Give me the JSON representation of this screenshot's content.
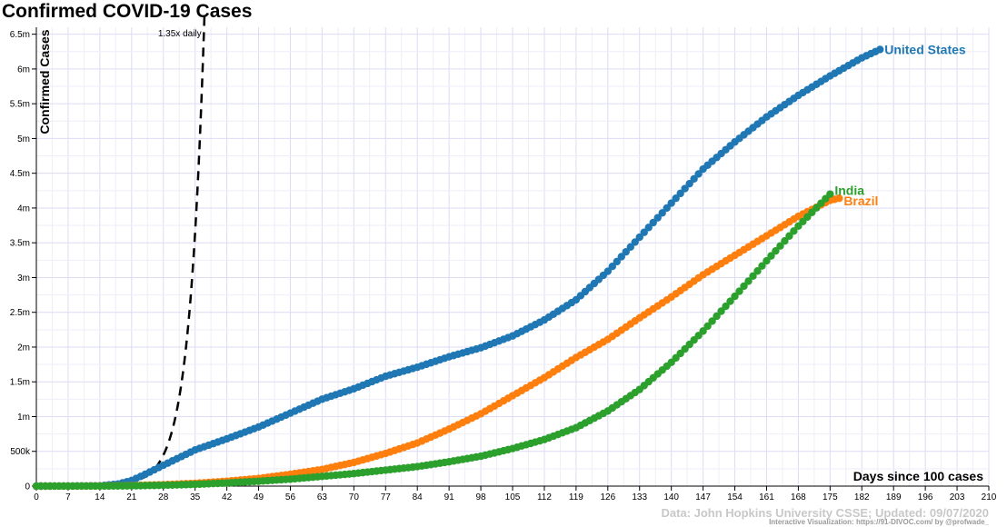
{
  "chart_data": {
    "type": "line",
    "title": "Confirmed COVID-19 Cases",
    "ylabel": "Confirmed Cases",
    "xlabel": "Days since 100 cases",
    "xlim": [
      0,
      210
    ],
    "ylim": [
      0,
      6600000
    ],
    "x_ticks": [
      0,
      7,
      14,
      21,
      28,
      35,
      42,
      49,
      56,
      63,
      70,
      77,
      84,
      91,
      98,
      105,
      112,
      119,
      126,
      133,
      140,
      147,
      154,
      161,
      168,
      175,
      182,
      189,
      196,
      203,
      210
    ],
    "y_ticks": [
      {
        "value": 0,
        "label": "0"
      },
      {
        "value": 500000,
        "label": "500k"
      },
      {
        "value": 1000000,
        "label": "1m"
      },
      {
        "value": 1500000,
        "label": "1.5m"
      },
      {
        "value": 2000000,
        "label": "2m"
      },
      {
        "value": 2500000,
        "label": "2.5m"
      },
      {
        "value": 3000000,
        "label": "3m"
      },
      {
        "value": 3500000,
        "label": "3.5m"
      },
      {
        "value": 4000000,
        "label": "4m"
      },
      {
        "value": 4500000,
        "label": "4.5m"
      },
      {
        "value": 5000000,
        "label": "5m"
      },
      {
        "value": 5500000,
        "label": "5.5m"
      },
      {
        "value": 6000000,
        "label": "6m"
      },
      {
        "value": 6500000,
        "label": "6.5m"
      }
    ],
    "grid": true,
    "reference_line": {
      "label": "1.35x daily",
      "growth_rate": 1.35,
      "start_value": 100,
      "style": "dashed",
      "color": "#000000"
    },
    "series": [
      {
        "name": "United States",
        "color": "#1f77b4",
        "x": [
          0,
          7,
          14,
          18,
          21,
          24,
          28,
          35,
          42,
          49,
          56,
          63,
          70,
          77,
          84,
          91,
          98,
          105,
          112,
          119,
          126,
          133,
          140,
          147,
          154,
          161,
          168,
          175,
          182,
          186
        ],
        "y": [
          100,
          800,
          4000,
          30000,
          80000,
          170000,
          300000,
          520000,
          680000,
          850000,
          1050000,
          1250000,
          1400000,
          1580000,
          1710000,
          1860000,
          1990000,
          2160000,
          2390000,
          2680000,
          3090000,
          3580000,
          4070000,
          4560000,
          4950000,
          5310000,
          5620000,
          5900000,
          6160000,
          6280000
        ]
      },
      {
        "name": "Brazil",
        "color": "#ff7f0e",
        "x": [
          0,
          7,
          14,
          21,
          28,
          35,
          42,
          49,
          56,
          63,
          70,
          77,
          84,
          91,
          98,
          105,
          112,
          119,
          126,
          133,
          140,
          147,
          154,
          161,
          168,
          175,
          177
        ],
        "y": [
          100,
          500,
          2000,
          8000,
          20000,
          40000,
          70000,
          110000,
          170000,
          240000,
          340000,
          470000,
          620000,
          820000,
          1040000,
          1300000,
          1560000,
          1850000,
          2110000,
          2420000,
          2720000,
          3040000,
          3320000,
          3600000,
          3880000,
          4110000,
          4140000
        ]
      },
      {
        "name": "India",
        "color": "#2ca02c",
        "x": [
          0,
          7,
          14,
          21,
          28,
          35,
          42,
          49,
          56,
          63,
          70,
          77,
          84,
          91,
          98,
          105,
          112,
          119,
          126,
          133,
          140,
          147,
          154,
          161,
          168,
          175
        ],
        "y": [
          100,
          300,
          1000,
          4000,
          12000,
          25000,
          45000,
          70000,
          100000,
          140000,
          180000,
          230000,
          280000,
          350000,
          430000,
          540000,
          670000,
          840000,
          1080000,
          1390000,
          1780000,
          2230000,
          2730000,
          3240000,
          3740000,
          4200000
        ]
      }
    ]
  },
  "credits": {
    "source": "Data: John Hopkins University CSSE; Updated: 09/07/2020",
    "visualization": "Interactive Visualization: https://91-DIVOC.com/ by @profwade_"
  }
}
